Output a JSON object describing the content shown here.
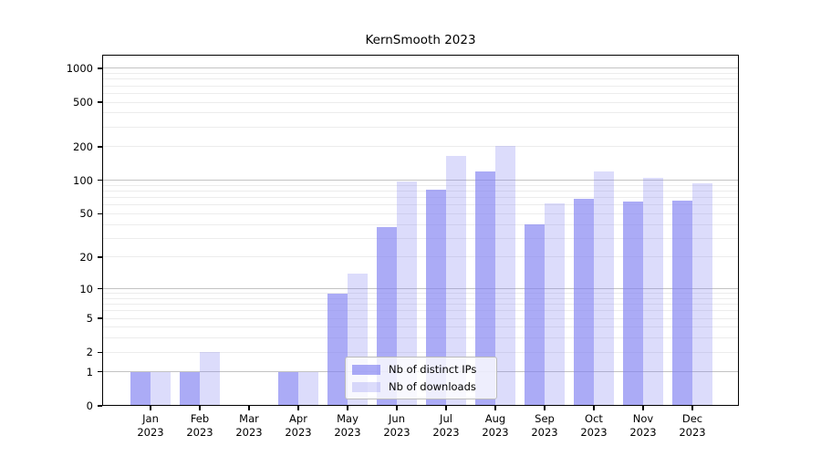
{
  "chart_data": {
    "type": "bar",
    "title": "KernSmooth 2023",
    "x_categories": [
      "Jan",
      "Feb",
      "Mar",
      "Apr",
      "May",
      "Jun",
      "Jul",
      "Aug",
      "Sep",
      "Oct",
      "Nov",
      "Dec"
    ],
    "x_year_label": "2023",
    "series": [
      {
        "name": "Nb of distinct IPs",
        "color": "#8080f2",
        "alpha": 0.66,
        "values": [
          1,
          1,
          0,
          1,
          9,
          38,
          83,
          121,
          40,
          68,
          64,
          66
        ]
      },
      {
        "name": "Nb of downloads",
        "color": "#8080f2",
        "alpha": 0.28,
        "values": [
          1,
          2,
          0,
          1,
          14,
          98,
          165,
          205,
          62,
          120,
          106,
          95
        ]
      }
    ],
    "y_scale": "log1p",
    "y_ticks": [
      0,
      1,
      2,
      5,
      10,
      20,
      50,
      100,
      200,
      500,
      1000
    ],
    "ylim": [
      0,
      1300
    ],
    "grid": true,
    "legend_position": "lower-center",
    "colors": {
      "background": "#ffffff",
      "axis": "#000000",
      "grid_major": "#c3c3c3",
      "grid_minor": "#ececec"
    }
  }
}
